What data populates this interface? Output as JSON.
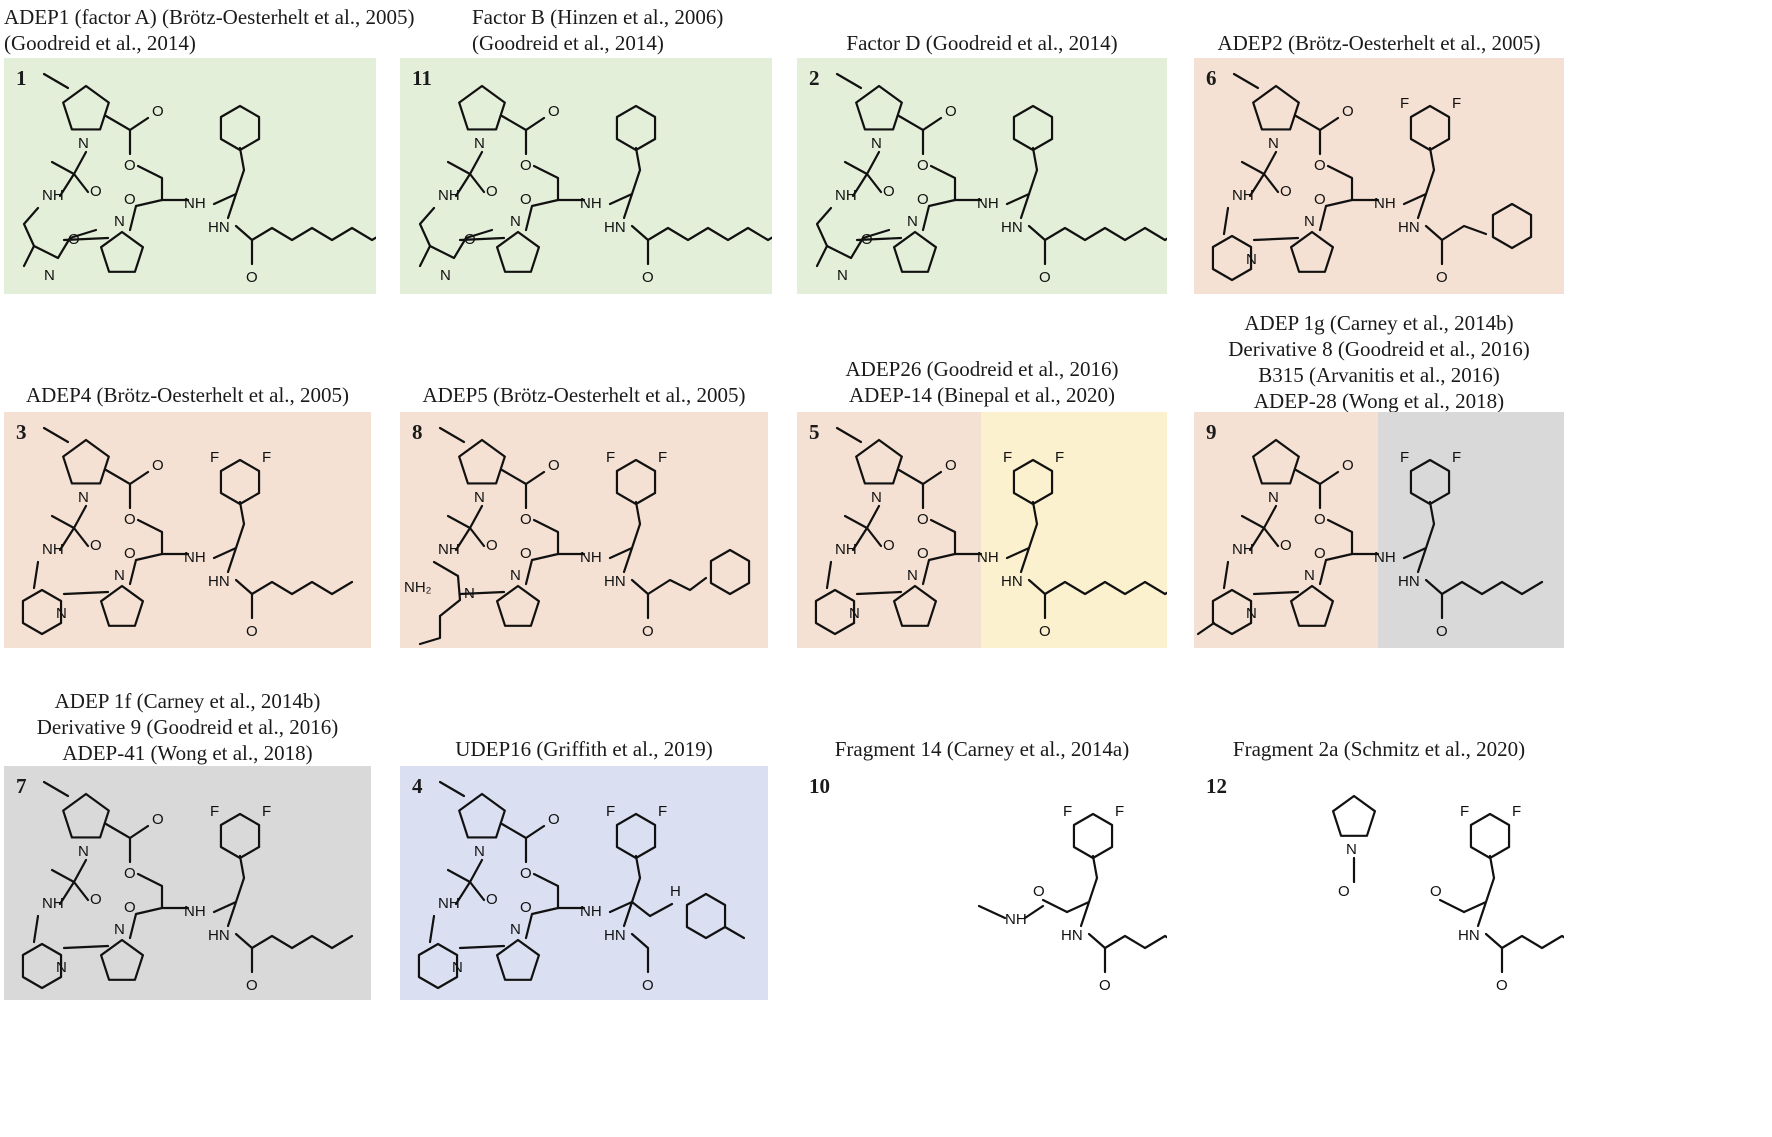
{
  "colors": {
    "green": "#e4efd9",
    "peach": "#f5e1d3",
    "yellow": "#fcf1cf",
    "grey": "#d9d9d9",
    "blue": "#dae0f1"
  },
  "compounds": [
    {
      "number": "1",
      "caption": [
        "ADEP1 (factor A) (Brötz-Oesterhelt et al., 2005)",
        "(Goodreid et al., 2014)"
      ],
      "bg": "green",
      "tail": "dienoyl-long",
      "ring": "pro"
    },
    {
      "number": "11",
      "caption": [
        "Factor B (Hinzen et al., 2006)",
        "(Goodreid et al., 2014)"
      ],
      "bg": "green",
      "tail": "dienoyl-long",
      "ring": "pro"
    },
    {
      "number": "2",
      "caption": [
        "Factor D (Goodreid et al., 2014)"
      ],
      "bg": "green",
      "tail": "dienoyl",
      "ring": "pro"
    },
    {
      "number": "6",
      "caption": [
        "ADEP2 (Brötz-Oesterhelt et al., 2005)"
      ],
      "bg": "peach",
      "tail": "cyclohexyl",
      "ring": "pip"
    },
    {
      "number": "3",
      "caption": [
        "ADEP4 (Brötz-Oesterhelt et al., 2005)"
      ],
      "bg": "peach",
      "tail": "heptenoyl",
      "ring": "pip"
    },
    {
      "number": "8",
      "caption": [
        "ADEP5 (Brötz-Oesterhelt et al., 2005)"
      ],
      "bg": "peach",
      "tail": "cyclohexyl-vinyl",
      "ring": "pro"
    },
    {
      "number": "5",
      "caption": [
        "ADEP26 (Goodreid et al., 2016)",
        "ADEP-14 (Binepal et al., 2020)"
      ],
      "bg": "peach",
      "bg2": "yellow",
      "tail": "dienoyl",
      "ring": "pip"
    },
    {
      "number": "9",
      "caption": [
        "ADEP 1g (Carney et al., 2014b)",
        "Derivative 8 (Goodreid et al., 2016)",
        "B315 (Arvanitis et al., 2016)",
        "ADEP-28 (Wong et al., 2018)"
      ],
      "bg": "peach",
      "bg2": "grey",
      "tail": "heptenoyl",
      "ring": "pip"
    },
    {
      "number": "7",
      "caption": [
        "ADEP 1f (Carney et al., 2014b)",
        "Derivative 9 (Goodreid et al., 2016)",
        "ADEP-41 (Wong et al., 2018)"
      ],
      "bg": "grey",
      "tail": "heptenoyl",
      "ring": "pip"
    },
    {
      "number": "4",
      "caption": [
        "UDEP16 (Griffith et al., 2019)"
      ],
      "bg": "blue",
      "tail": "urea",
      "ring": "pip"
    },
    {
      "number": "10",
      "caption": [
        "Fragment 14 (Carney et al., 2014a)"
      ],
      "bg": "white",
      "tail": "heptenoyl",
      "ring": "fragment"
    },
    {
      "number": "12",
      "caption": [
        "Fragment 2a (Schmitz et al., 2020)"
      ],
      "bg": "white",
      "tail": "heptenoyl",
      "ring": "fragment2"
    }
  ],
  "atoms": {
    "N": "N",
    "O": "O",
    "F": "F",
    "NH": "NH",
    "HN": "HN",
    "H": "H",
    "NH2": "NH₂"
  }
}
